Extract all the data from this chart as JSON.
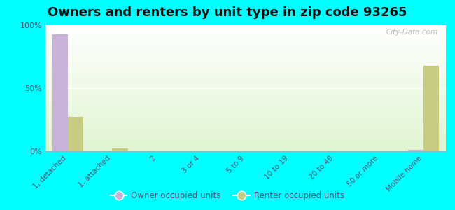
{
  "title": "Owners and renters by unit type in zip code 93265",
  "categories": [
    "1, detached",
    "1, attached",
    "2",
    "3 or 4",
    "5 to 9",
    "10 to 19",
    "20 to 49",
    "50 or more",
    "Mobile home"
  ],
  "owner_values": [
    93,
    0,
    0,
    0,
    0,
    0,
    0,
    0,
    1
  ],
  "renter_values": [
    27,
    2,
    0,
    0,
    0,
    0,
    0,
    0,
    68
  ],
  "owner_color": "#c9b3d9",
  "renter_color": "#c8cc82",
  "outer_background": "#00ffff",
  "yticks": [
    0,
    50,
    100
  ],
  "ylim": [
    0,
    100
  ],
  "watermark": "City-Data.com",
  "bar_width": 0.35,
  "tick_label_color": "#555577",
  "title_fontsize": 13
}
